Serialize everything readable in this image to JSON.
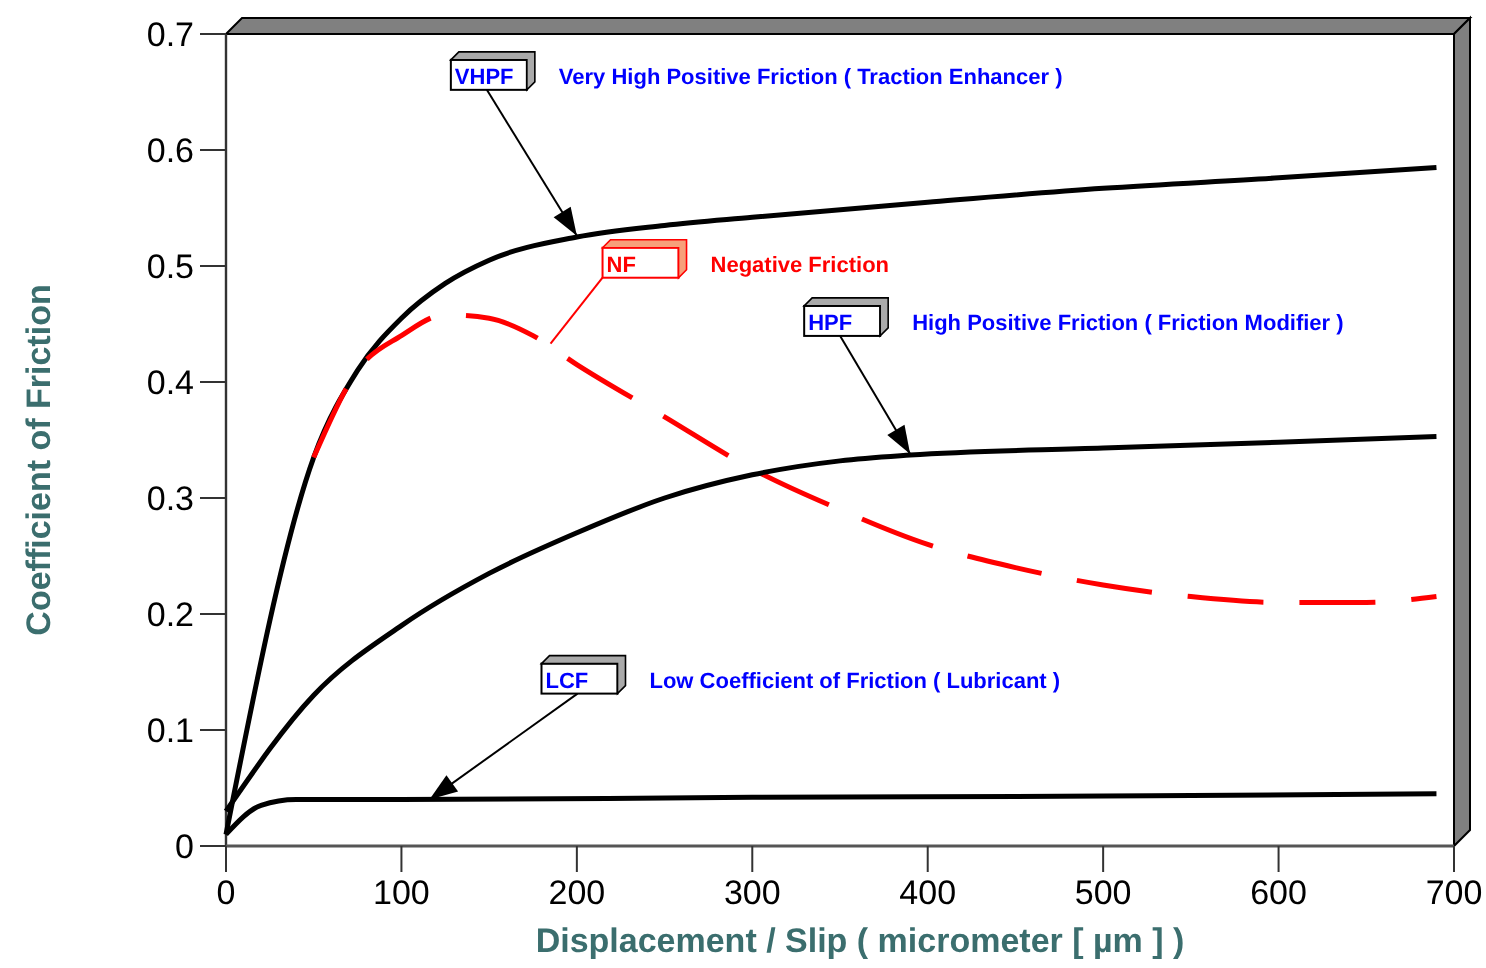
{
  "chart_data": {
    "type": "line",
    "xlabel": "Displacement / Slip ( micrometer [ µm ] )",
    "ylabel": "Coefficient of Friction",
    "xlim": [
      0,
      700
    ],
    "ylim": [
      0,
      0.7
    ],
    "xticks": [
      0,
      100,
      200,
      300,
      400,
      500,
      600,
      700
    ],
    "yticks": [
      0,
      0.1,
      0.2,
      0.3,
      0.4,
      0.5,
      0.6,
      0.7
    ],
    "grid": false,
    "marker": "none",
    "series": [
      {
        "color": "#000000",
        "line_style": "solid",
        "x": [
          0,
          50,
          75,
          100,
          125,
          150,
          200,
          250,
          300,
          400,
          500,
          600,
          690
        ],
        "values": [
          0.01,
          0.335,
          0.41,
          0.455,
          0.485,
          0.505,
          0.525,
          0.535,
          0.542,
          0.555,
          0.567,
          0.576,
          0.585
        ]
      },
      {
        "color": "#ff0000",
        "line_style": "dashed",
        "x": [
          50,
          75,
          100,
          125,
          150,
          175,
          200,
          250,
          300,
          350,
          400,
          450,
          500,
          550,
          600,
          650,
          690
        ],
        "values": [
          0.335,
          0.41,
          0.44,
          0.458,
          0.455,
          0.44,
          0.415,
          0.37,
          0.325,
          0.29,
          0.26,
          0.24,
          0.225,
          0.215,
          0.21,
          0.21,
          0.215
        ]
      },
      {
        "color": "#000000",
        "line_style": "solid",
        "x": [
          0,
          50,
          100,
          150,
          200,
          250,
          300,
          350,
          390,
          500,
          600,
          690
        ],
        "values": [
          0.03,
          0.13,
          0.19,
          0.235,
          0.27,
          0.3,
          0.32,
          0.332,
          0.337,
          0.343,
          0.348,
          0.353
        ]
      },
      {
        "color": "#000000",
        "line_style": "solid",
        "x": [
          0,
          20,
          40,
          100,
          300,
          500,
          690
        ],
        "values": [
          0.01,
          0.035,
          0.04,
          0.04,
          0.042,
          0.043,
          0.045
        ]
      }
    ],
    "annotations": [
      {
        "text": "VHPF",
        "x": 200,
        "y": 0.526
      },
      "Very High Positive Friction ( Traction Enhancer )",
      {
        "text": "NF",
        "x": 185,
        "y": 0.433
      },
      "Negative Friction",
      {
        "text": "HPF",
        "x": 390,
        "y": 0.338
      },
      "High Positive Friction ( Friction Modifier )",
      {
        "text": "LCF",
        "x": 116,
        "y": 0.04
      },
      "Low Coefficient of Friction ( Lubricant )"
    ]
  }
}
